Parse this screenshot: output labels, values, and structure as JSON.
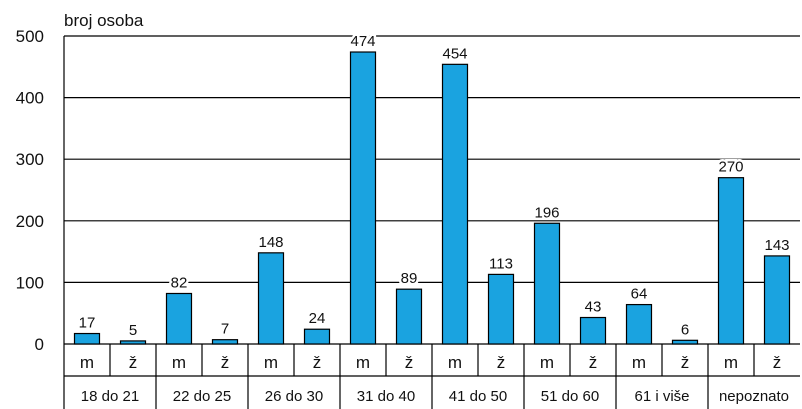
{
  "chart_data": {
    "type": "bar",
    "title": "",
    "ylabel": "broj osoba",
    "xlabel": "",
    "ylim": [
      0,
      500
    ],
    "yticks": [
      0,
      100,
      200,
      300,
      400,
      500
    ],
    "grid": true,
    "bar_color": "#1aa3e0",
    "groups": [
      {
        "label": "18 do 21",
        "bars": [
          {
            "sub": "m",
            "value": 17
          },
          {
            "sub": "ž",
            "value": 5
          }
        ]
      },
      {
        "label": "22 do 25",
        "bars": [
          {
            "sub": "m",
            "value": 82
          },
          {
            "sub": "ž",
            "value": 7
          }
        ]
      },
      {
        "label": "26 do 30",
        "bars": [
          {
            "sub": "m",
            "value": 148
          },
          {
            "sub": "ž",
            "value": 24
          }
        ]
      },
      {
        "label": "31 do 40",
        "bars": [
          {
            "sub": "m",
            "value": 474
          },
          {
            "sub": "ž",
            "value": 89
          }
        ]
      },
      {
        "label": "41 do 50",
        "bars": [
          {
            "sub": "m",
            "value": 454
          },
          {
            "sub": "ž",
            "value": 113
          }
        ]
      },
      {
        "label": "51 do 60",
        "bars": [
          {
            "sub": "m",
            "value": 196
          },
          {
            "sub": "ž",
            "value": 43
          }
        ]
      },
      {
        "label": "61 i više",
        "bars": [
          {
            "sub": "m",
            "value": 64
          },
          {
            "sub": "ž",
            "value": 6
          }
        ]
      },
      {
        "label": "nepoznato",
        "bars": [
          {
            "sub": "m",
            "value": 270
          },
          {
            "sub": "ž",
            "value": 143
          }
        ]
      }
    ]
  }
}
